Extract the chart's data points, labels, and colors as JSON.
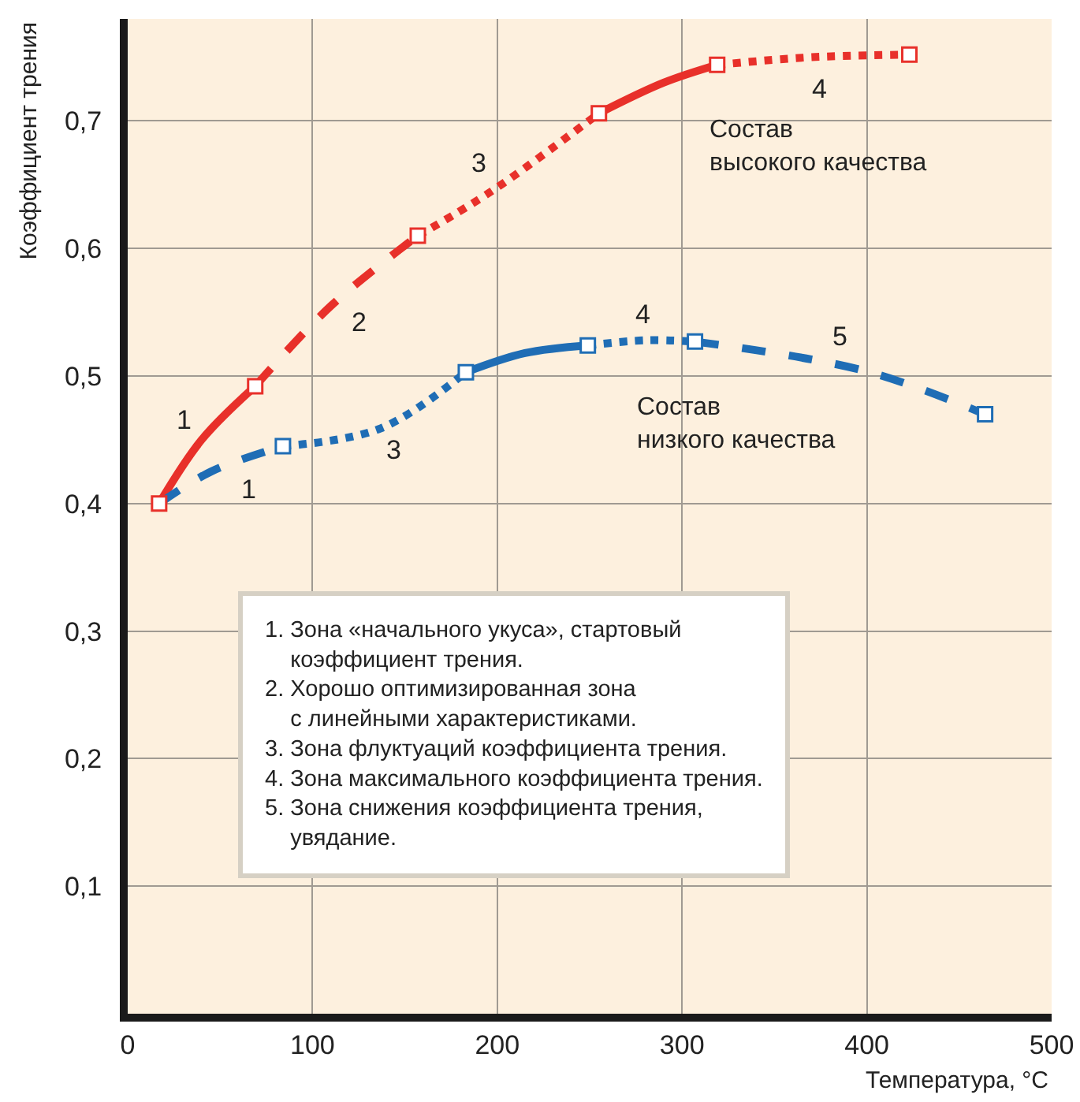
{
  "chart_data": {
    "type": "line",
    "xlabel": "Температура, °C",
    "ylabel": "Коэффициент трения",
    "xlim": [
      0,
      500
    ],
    "xticks": [
      0,
      100,
      200,
      300,
      400,
      500
    ],
    "ylim": [
      0,
      0.78
    ],
    "yticks": [
      {
        "value": 0.1,
        "label": "0,1"
      },
      {
        "value": 0.2,
        "label": "0,2"
      },
      {
        "value": 0.3,
        "label": "0,3"
      },
      {
        "value": 0.4,
        "label": "0,4"
      },
      {
        "value": 0.5,
        "label": "0,5"
      },
      {
        "value": 0.6,
        "label": "0,6"
      },
      {
        "value": 0.7,
        "label": "0,7"
      }
    ],
    "grid": true,
    "series": [
      {
        "color": "#e8302a",
        "line_style": "solid",
        "marker": "none",
        "x": [
          17,
          40,
          69
        ],
        "values": [
          0.4,
          0.45,
          0.492
        ]
      },
      {
        "color": "#e8302a",
        "line_style": "dashed",
        "marker": "none",
        "x": [
          69,
          110,
          157
        ],
        "values": [
          0.492,
          0.555,
          0.61
        ]
      },
      {
        "color": "#e8302a",
        "line_style": "dotted",
        "marker": "none",
        "x": [
          157,
          197,
          255
        ],
        "values": [
          0.61,
          0.645,
          0.706
        ]
      },
      {
        "color": "#e8302a",
        "line_style": "solid",
        "marker": "none",
        "x": [
          255,
          290,
          319
        ],
        "values": [
          0.706,
          0.73,
          0.744
        ]
      },
      {
        "color": "#e8302a",
        "line_style": "dotted",
        "marker": "none",
        "x": [
          319,
          370,
          423
        ],
        "values": [
          0.744,
          0.75,
          0.752
        ]
      },
      {
        "color": "#1f6db5",
        "line_style": "dashed",
        "marker": "none",
        "x": [
          17,
          45,
          84
        ],
        "values": [
          0.4,
          0.425,
          0.445
        ]
      },
      {
        "color": "#1f6db5",
        "line_style": "dotted",
        "marker": "none",
        "x": [
          84,
          137,
          183
        ],
        "values": [
          0.445,
          0.459,
          0.503
        ]
      },
      {
        "color": "#1f6db5",
        "line_style": "solid",
        "marker": "none",
        "x": [
          183,
          215,
          249
        ],
        "values": [
          0.503,
          0.518,
          0.524
        ]
      },
      {
        "color": "#1f6db5",
        "line_style": "dotted",
        "marker": "none",
        "x": [
          249,
          280,
          307
        ],
        "values": [
          0.524,
          0.528,
          0.527
        ]
      },
      {
        "color": "#1f6db5",
        "line_style": "dashed",
        "marker": "none",
        "x": [
          307,
          399,
          464
        ],
        "values": [
          0.527,
          0.504,
          0.47
        ]
      },
      {
        "type": "scatter",
        "color": "#e8302a",
        "marker": "square",
        "x": [
          17,
          69,
          157,
          255,
          319,
          423
        ],
        "values": [
          0.4,
          0.492,
          0.61,
          0.706,
          0.744,
          0.752
        ]
      },
      {
        "type": "scatter",
        "color": "#1f6db5",
        "marker": "square",
        "x": [
          84,
          183,
          249,
          307,
          464
        ],
        "values": [
          0.445,
          0.503,
          0.524,
          0.527,
          0.47
        ]
      }
    ],
    "annotations": [
      "1",
      "2",
      "3",
      "4",
      "Состав\nвысокого качества",
      "1",
      "3",
      "4",
      "5",
      "Состав\nнизкого качества",
      "1. Зона «начального укуса», стартовый\n    коэффициент трения.\n2. Хорошо оптимизированная зона\n    с линейными характеристиками.\n3. Зона флуктуаций коэффициента трения.\n4. Зона максимального коэффициента трения.\n5. Зона снижения коэффициента трения,\n    увядание."
    ]
  }
}
